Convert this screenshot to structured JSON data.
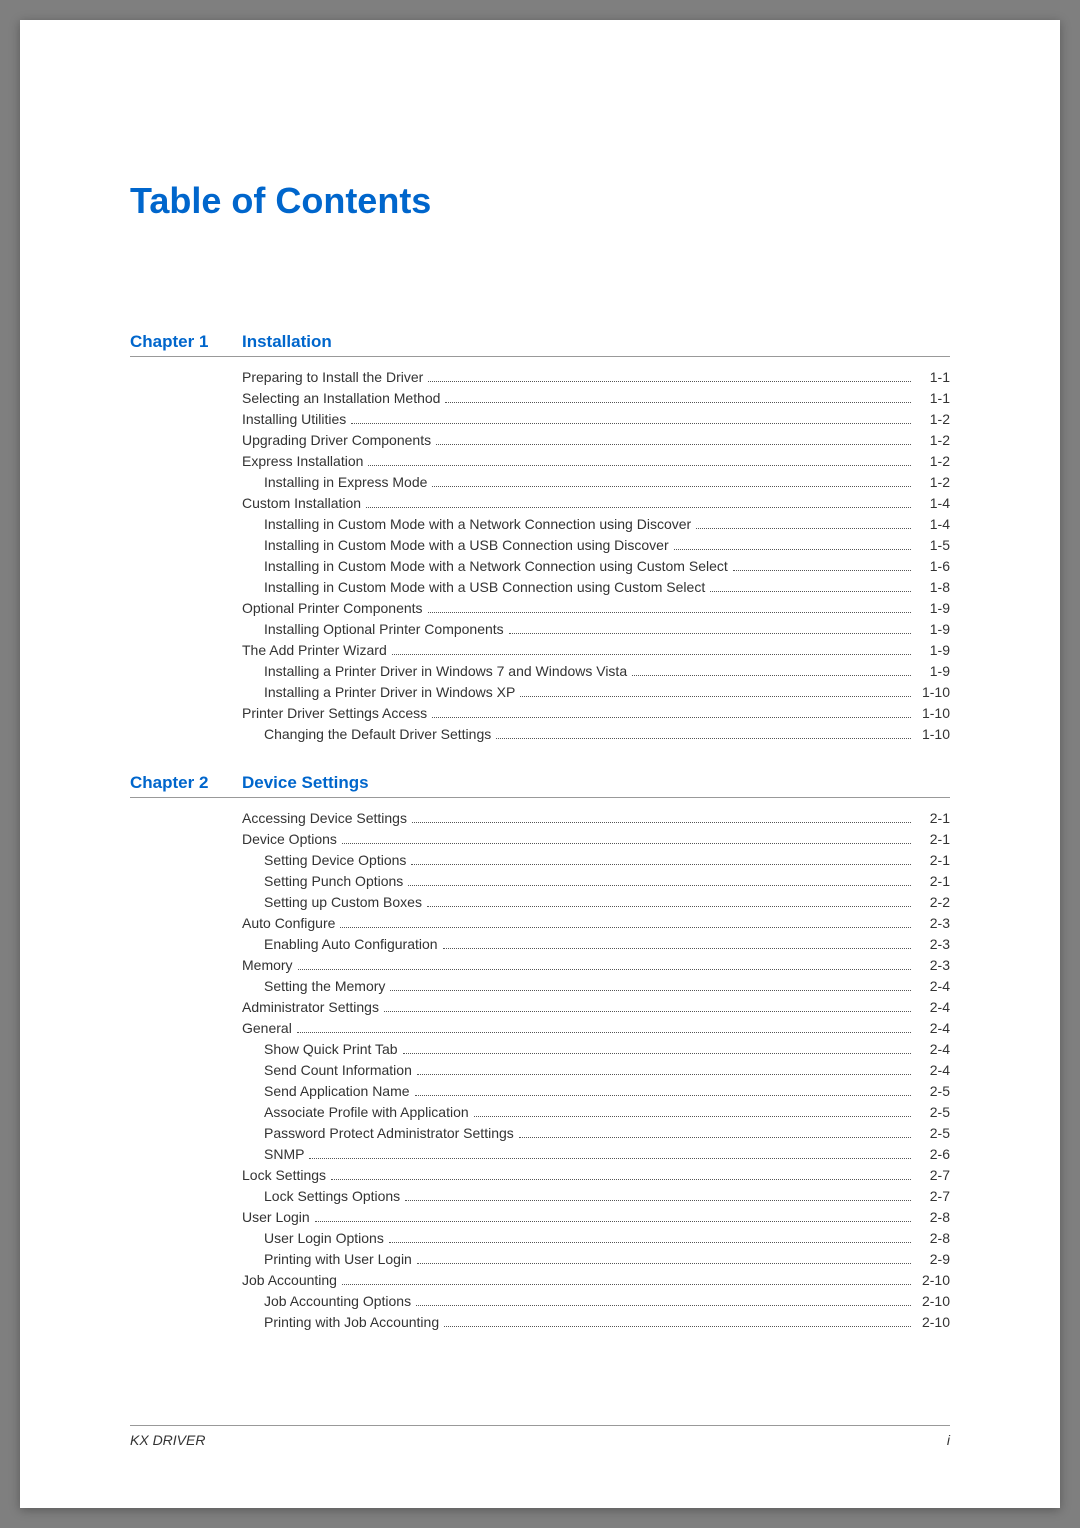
{
  "page": {
    "title": "Table of Contents",
    "footer_left": "KX DRIVER",
    "footer_right": "i",
    "colors": {
      "accent": "#0066cc",
      "text": "#333333",
      "rule": "#999999",
      "background": "#ffffff",
      "canvas": "#7f7f7f"
    },
    "typography": {
      "title_fontsize": 36,
      "chapter_fontsize": 17,
      "entry_fontsize": 14,
      "footer_fontsize": 14,
      "font_family": "Arial"
    }
  },
  "chapters": [
    {
      "label": "Chapter 1",
      "title": "Installation",
      "entries": [
        {
          "indent": 0,
          "text": "Preparing to Install the Driver",
          "page": "1-1"
        },
        {
          "indent": 0,
          "text": "Selecting an Installation Method",
          "page": "1-1"
        },
        {
          "indent": 0,
          "text": "Installing Utilities",
          "page": "1-2"
        },
        {
          "indent": 0,
          "text": "Upgrading Driver Components",
          "page": "1-2"
        },
        {
          "indent": 0,
          "text": "Express Installation",
          "page": "1-2"
        },
        {
          "indent": 1,
          "text": "Installing in Express Mode",
          "page": "1-2"
        },
        {
          "indent": 0,
          "text": "Custom Installation",
          "page": "1-4"
        },
        {
          "indent": 1,
          "text": "Installing in Custom Mode with a Network Connection using Discover",
          "page": "1-4"
        },
        {
          "indent": 1,
          "text": "Installing in Custom Mode with a USB Connection using Discover",
          "page": "1-5"
        },
        {
          "indent": 1,
          "text": "Installing in Custom Mode with a Network Connection using Custom Select",
          "page": "1-6"
        },
        {
          "indent": 1,
          "text": "Installing in Custom Mode with a USB Connection using Custom Select",
          "page": "1-8"
        },
        {
          "indent": 0,
          "text": "Optional Printer Components",
          "page": "1-9"
        },
        {
          "indent": 1,
          "text": "Installing Optional Printer Components",
          "page": "1-9"
        },
        {
          "indent": 0,
          "text": "The Add Printer Wizard",
          "page": "1-9"
        },
        {
          "indent": 1,
          "text": "Installing a Printer Driver in Windows 7 and Windows Vista",
          "page": "1-9"
        },
        {
          "indent": 1,
          "text": "Installing a Printer Driver in Windows XP",
          "page": "1-10"
        },
        {
          "indent": 0,
          "text": "Printer Driver Settings Access",
          "page": "1-10"
        },
        {
          "indent": 1,
          "text": "Changing the Default Driver Settings",
          "page": "1-10"
        }
      ]
    },
    {
      "label": "Chapter 2",
      "title": "Device Settings",
      "entries": [
        {
          "indent": 0,
          "text": "Accessing Device Settings",
          "page": "2-1"
        },
        {
          "indent": 0,
          "text": "Device Options",
          "page": "2-1"
        },
        {
          "indent": 1,
          "text": "Setting Device Options",
          "page": "2-1"
        },
        {
          "indent": 1,
          "text": "Setting Punch Options",
          "page": "2-1"
        },
        {
          "indent": 1,
          "text": "Setting up Custom Boxes",
          "page": "2-2"
        },
        {
          "indent": 0,
          "text": "Auto Configure",
          "page": "2-3"
        },
        {
          "indent": 1,
          "text": "Enabling Auto Configuration",
          "page": "2-3"
        },
        {
          "indent": 0,
          "text": "Memory",
          "page": "2-3"
        },
        {
          "indent": 1,
          "text": "Setting the Memory",
          "page": "2-4"
        },
        {
          "indent": 0,
          "text": "Administrator Settings",
          "page": "2-4"
        },
        {
          "indent": 0,
          "text": "General",
          "page": "2-4"
        },
        {
          "indent": 1,
          "text": "Show Quick Print Tab",
          "page": "2-4"
        },
        {
          "indent": 1,
          "text": "Send Count Information",
          "page": "2-4"
        },
        {
          "indent": 1,
          "text": "Send Application Name",
          "page": "2-5"
        },
        {
          "indent": 1,
          "text": "Associate Profile with Application",
          "page": "2-5"
        },
        {
          "indent": 1,
          "text": "Password Protect Administrator Settings",
          "page": "2-5"
        },
        {
          "indent": 1,
          "text": "SNMP",
          "page": "2-6"
        },
        {
          "indent": 0,
          "text": "Lock Settings",
          "page": "2-7"
        },
        {
          "indent": 1,
          "text": "Lock Settings Options",
          "page": "2-7"
        },
        {
          "indent": 0,
          "text": "User Login",
          "page": "2-8"
        },
        {
          "indent": 1,
          "text": "User Login Options",
          "page": "2-8"
        },
        {
          "indent": 1,
          "text": "Printing with User Login",
          "page": "2-9"
        },
        {
          "indent": 0,
          "text": "Job Accounting",
          "page": "2-10"
        },
        {
          "indent": 1,
          "text": "Job Accounting Options",
          "page": "2-10"
        },
        {
          "indent": 1,
          "text": "Printing with Job Accounting",
          "page": "2-10"
        }
      ]
    }
  ]
}
